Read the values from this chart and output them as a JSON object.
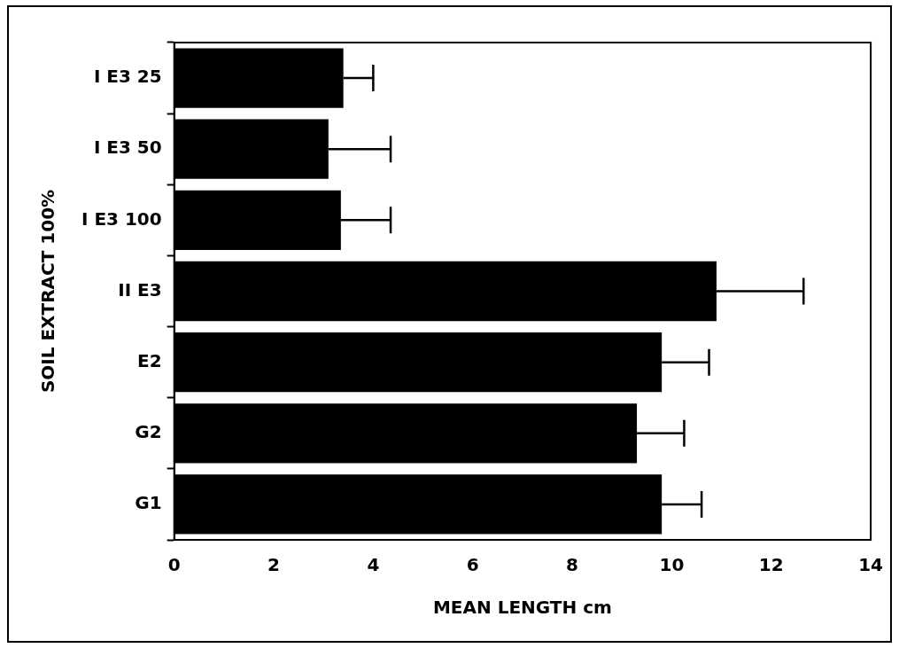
{
  "chart_data": {
    "type": "bar",
    "orientation": "horizontal",
    "xlabel": "MEAN LENGTH cm",
    "ylabel": "SOIL EXTRACT 100%",
    "categories": [
      "I E3 25",
      "I E3 50",
      "I E3 100",
      "II E3",
      "E2",
      "G2",
      "G1"
    ],
    "values": [
      3.4,
      3.1,
      3.35,
      10.9,
      9.8,
      9.3,
      9.8
    ],
    "errors": [
      0.6,
      1.25,
      1.0,
      1.75,
      0.95,
      0.95,
      0.8
    ],
    "color": "#000000",
    "xlim": [
      0,
      14
    ],
    "xticks": [
      0,
      2,
      4,
      6,
      8,
      10,
      12,
      14
    ],
    "grid": false,
    "legend": false
  }
}
